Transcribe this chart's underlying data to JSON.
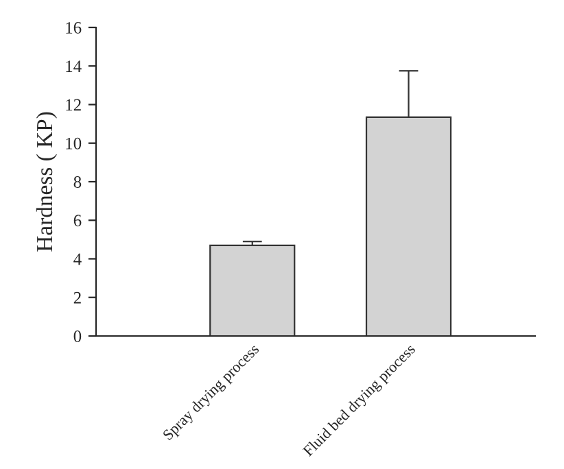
{
  "chart_data": {
    "type": "bar",
    "ylabel": "Hardness ( KP)",
    "categories": [
      "Spray drying process",
      "Fluid bed drying process"
    ],
    "values": [
      4.7,
      11.35
    ],
    "errors": [
      0.2,
      2.4
    ],
    "color": "#d3d3d3",
    "ylim": [
      0,
      16
    ],
    "yticks": [
      0,
      2,
      4,
      6,
      8,
      10,
      12,
      14,
      16
    ],
    "grid": false,
    "legend": false
  }
}
